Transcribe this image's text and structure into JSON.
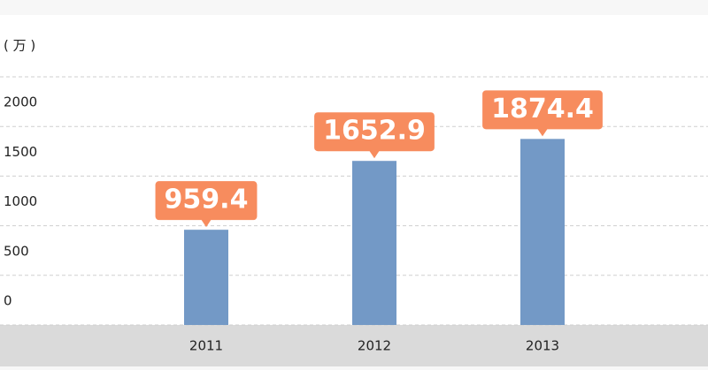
{
  "chart_data": {
    "type": "bar",
    "y_unit": "( 万 )",
    "categories": [
      "2011",
      "2012",
      "2013"
    ],
    "values": [
      959.4,
      1652.9,
      1874.4
    ],
    "color": "#7399c6",
    "label_color": "#f78c5e",
    "ylim": [
      0,
      2500
    ],
    "yticks": [
      0,
      500,
      1000,
      1500,
      2000
    ],
    "grid": true
  }
}
